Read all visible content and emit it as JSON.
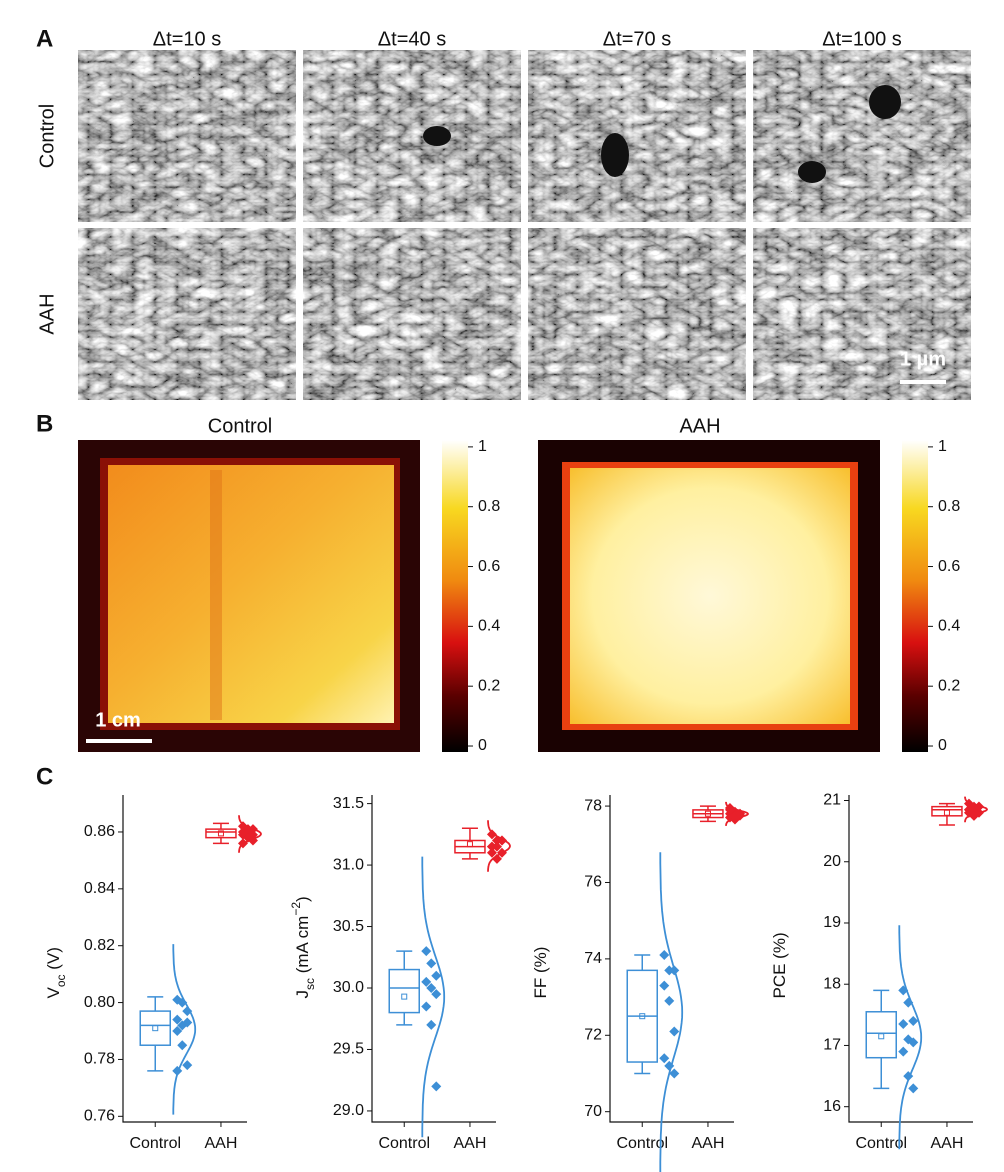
{
  "panel_labels": [
    "A",
    "B",
    "C"
  ],
  "panel_a": {
    "columns": [
      "Δt=10 s",
      "Δt=40 s",
      "Δt=70 s",
      "Δt=100 s"
    ],
    "rows": [
      "Control",
      "AAH"
    ],
    "scale_bar": "1 µm"
  },
  "panel_b": {
    "titles": [
      "Control",
      "AAH"
    ],
    "scale_bar": "1 cm",
    "colorbar": {
      "ylim": [
        -0.02,
        1.023
      ],
      "ticks": [
        0,
        0.2,
        0.4,
        0.6,
        0.8,
        1
      ]
    }
  },
  "chart_data": [
    {
      "type": "box",
      "ylabel": [
        {
          "text": "V"
        },
        {
          "text": "oc",
          "script": "sub"
        },
        {
          "text": " (V)"
        }
      ],
      "categories": [
        "Control",
        "AAH"
      ],
      "ylim": [
        0.758,
        0.873
      ],
      "yticks": [
        0.76,
        0.78,
        {
          "value": 0.8,
          "label": "0.80"
        },
        0.82,
        0.84,
        0.86
      ],
      "boxes": [
        {
          "color": "#3d8fd6",
          "min": 0.776,
          "q1": 0.785,
          "median": 0.792,
          "q3": 0.797,
          "max": 0.802,
          "mean": 0.791,
          "points": [
            0.801,
            0.8,
            0.797,
            0.794,
            0.792,
            0.793,
            0.79,
            0.785,
            0.778,
            0.776
          ]
        },
        {
          "color": "#e8202a",
          "min": 0.856,
          "q1": 0.858,
          "median": 0.86,
          "q3": 0.861,
          "max": 0.863,
          "mean": 0.8595,
          "points": [
            0.862,
            0.861,
            0.861,
            0.86,
            0.86,
            0.859,
            0.859,
            0.858,
            0.857,
            0.856
          ]
        }
      ]
    },
    {
      "type": "box",
      "ylabel": [
        {
          "text": "J"
        },
        {
          "text": "sc",
          "script": "sub"
        },
        {
          "text": " (mA cm"
        },
        {
          "text": "−2",
          "script": "super"
        },
        {
          "text": ")"
        }
      ],
      "categories": [
        "Control",
        "AAH"
      ],
      "ylim": [
        28.91,
        31.57
      ],
      "yticks": [
        {
          "value": 29,
          "label": "29.0"
        },
        29.5,
        {
          "value": 30,
          "label": "30.0"
        },
        30.5,
        {
          "value": 31,
          "label": "31.0"
        },
        31.5
      ],
      "boxes": [
        {
          "color": "#3d8fd6",
          "min": 29.7,
          "q1": 29.8,
          "median": 30.0,
          "q3": 30.15,
          "max": 30.3,
          "mean": 29.93,
          "points": [
            30.3,
            30.2,
            30.1,
            30.05,
            30.0,
            29.95,
            29.85,
            29.7,
            29.2
          ]
        },
        {
          "color": "#e8202a",
          "min": 31.05,
          "q1": 31.1,
          "median": 31.15,
          "q3": 31.2,
          "max": 31.3,
          "mean": 31.17,
          "points": [
            31.25,
            31.2,
            31.2,
            31.15,
            31.15,
            31.1,
            31.1,
            31.05,
            31.2,
            31.15
          ]
        }
      ]
    },
    {
      "type": "box",
      "ylabel": [
        {
          "text": "FF (%)"
        }
      ],
      "categories": [
        "Control",
        "AAH"
      ],
      "ylim": [
        69.73,
        78.29
      ],
      "yticks": [
        70,
        72,
        74,
        76,
        78
      ],
      "boxes": [
        {
          "color": "#3d8fd6",
          "min": 71.0,
          "q1": 71.3,
          "median": 72.5,
          "q3": 73.7,
          "max": 74.1,
          "mean": 72.5,
          "points": [
            74.1,
            73.7,
            73.7,
            73.3,
            72.9,
            72.1,
            71.4,
            71.2,
            71.0
          ]
        },
        {
          "color": "#e8202a",
          "min": 77.6,
          "q1": 77.7,
          "median": 77.8,
          "q3": 77.9,
          "max": 78.0,
          "mean": 77.8,
          "points": [
            77.95,
            77.85,
            77.8,
            77.8,
            77.75,
            77.75,
            77.7,
            77.65,
            77.8,
            77.9
          ]
        }
      ]
    },
    {
      "type": "box",
      "ylabel": [
        {
          "text": "PCE (%)"
        }
      ],
      "categories": [
        "Control",
        "AAH"
      ],
      "ylim": [
        15.75,
        21.09
      ],
      "yticks": [
        16,
        17,
        18,
        19,
        20,
        21
      ],
      "boxes": [
        {
          "color": "#3d8fd6",
          "min": 16.3,
          "q1": 16.8,
          "median": 17.2,
          "q3": 17.55,
          "max": 17.9,
          "mean": 17.15,
          "points": [
            17.9,
            17.7,
            17.4,
            17.35,
            17.1,
            17.05,
            16.9,
            16.5,
            16.3
          ]
        },
        {
          "color": "#e8202a",
          "min": 20.6,
          "q1": 20.75,
          "median": 20.85,
          "q3": 20.9,
          "max": 20.95,
          "mean": 20.8,
          "points": [
            20.95,
            20.9,
            20.9,
            20.85,
            20.85,
            20.8,
            20.8,
            20.75,
            20.9,
            20.85
          ]
        }
      ]
    }
  ]
}
